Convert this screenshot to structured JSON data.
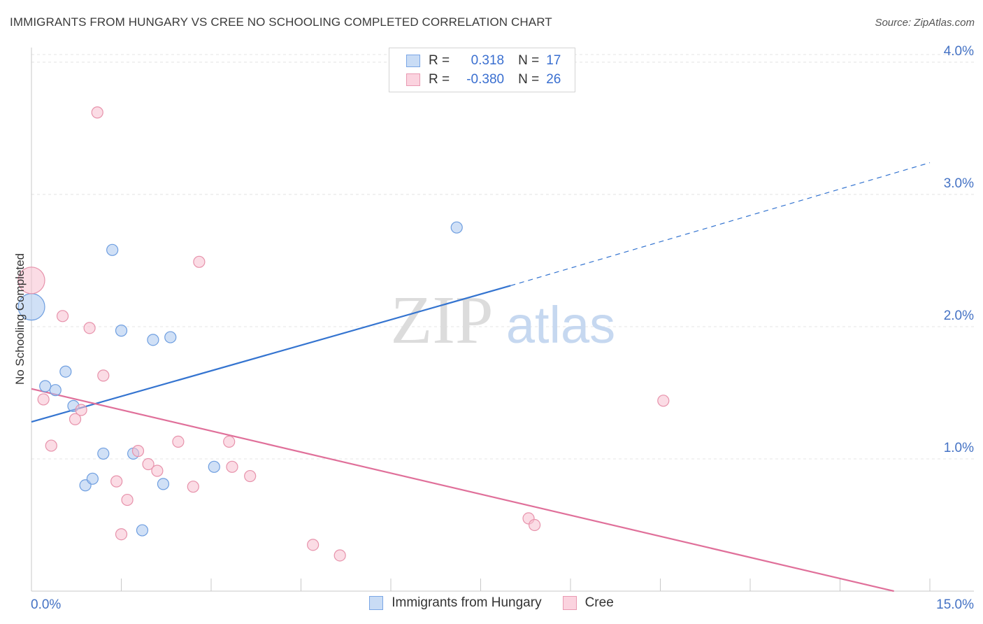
{
  "header": {
    "title": "IMMIGRANTS FROM HUNGARY VS CREE NO SCHOOLING COMPLETED CORRELATION CHART",
    "source": "Source: ZipAtlas.com"
  },
  "watermark": {
    "zip": "ZIP",
    "atlas": "atlas"
  },
  "legend": {
    "rows": [
      {
        "r_label": "R =",
        "r_value": "0.318",
        "n_label": "N =",
        "n_value": "17",
        "color": "#a8c8f0",
        "border": "#6f9fe0"
      },
      {
        "r_label": "R =",
        "r_value": "-0.380",
        "n_label": "N =",
        "n_value": "26",
        "color": "#f8bfd0",
        "border": "#e890aa"
      }
    ]
  },
  "bottom_legend": [
    {
      "label": "Immigrants from Hungary",
      "color": "#c9dcf5",
      "border": "#7aa6e6"
    },
    {
      "label": "Cree",
      "color": "#fbd3df",
      "border": "#e99ab2"
    }
  ],
  "chart_data": {
    "type": "scatter",
    "title": "IMMIGRANTS FROM HUNGARY VS CREE NO SCHOOLING COMPLETED CORRELATION CHART",
    "xlabel": "",
    "ylabel": "No Schooling Completed",
    "xlim": [
      0,
      15
    ],
    "ylim": [
      0,
      4.1
    ],
    "x_tick_labels": [
      "0.0%",
      "15.0%"
    ],
    "y_ticks": [
      1,
      2,
      3,
      4
    ],
    "y_tick_labels": [
      "1.0%",
      "2.0%",
      "3.0%",
      "4.0%"
    ],
    "grid": true,
    "series": [
      {
        "name": "Immigrants from Hungary",
        "color": "#a9c7ee",
        "stroke": "#6e9ee0",
        "points": [
          {
            "x": 0.0,
            "y": 2.15,
            "big": true
          },
          {
            "x": 0.23,
            "y": 1.55
          },
          {
            "x": 0.4,
            "y": 1.52
          },
          {
            "x": 0.57,
            "y": 1.66
          },
          {
            "x": 0.7,
            "y": 1.4
          },
          {
            "x": 0.9,
            "y": 0.8
          },
          {
            "x": 1.02,
            "y": 0.85
          },
          {
            "x": 1.2,
            "y": 1.04
          },
          {
            "x": 1.35,
            "y": 2.58
          },
          {
            "x": 1.5,
            "y": 1.97
          },
          {
            "x": 1.7,
            "y": 1.04
          },
          {
            "x": 1.85,
            "y": 0.46
          },
          {
            "x": 2.03,
            "y": 1.9
          },
          {
            "x": 2.2,
            "y": 0.81
          },
          {
            "x": 2.32,
            "y": 1.92
          },
          {
            "x": 3.05,
            "y": 0.94
          },
          {
            "x": 7.1,
            "y": 2.75
          }
        ],
        "trend": {
          "x0": 0,
          "y0": 1.28,
          "x1": 8.0,
          "y1": 2.31,
          "dash_x1": 15,
          "dash_y1": 3.24
        }
      },
      {
        "name": "Cree",
        "color": "#f8c0d0",
        "stroke": "#e792ab",
        "points": [
          {
            "x": 0.0,
            "y": 2.35,
            "big": true
          },
          {
            "x": 0.2,
            "y": 1.45
          },
          {
            "x": 0.33,
            "y": 1.1
          },
          {
            "x": 0.52,
            "y": 2.08
          },
          {
            "x": 0.73,
            "y": 1.3
          },
          {
            "x": 0.83,
            "y": 1.37
          },
          {
            "x": 0.97,
            "y": 1.99
          },
          {
            "x": 1.1,
            "y": 3.62
          },
          {
            "x": 1.2,
            "y": 1.63
          },
          {
            "x": 1.42,
            "y": 0.83
          },
          {
            "x": 1.5,
            "y": 0.43
          },
          {
            "x": 1.6,
            "y": 0.69
          },
          {
            "x": 1.78,
            "y": 1.06
          },
          {
            "x": 1.95,
            "y": 0.96
          },
          {
            "x": 2.1,
            "y": 0.91
          },
          {
            "x": 2.45,
            "y": 1.13
          },
          {
            "x": 2.7,
            "y": 0.79
          },
          {
            "x": 2.8,
            "y": 2.49
          },
          {
            "x": 3.3,
            "y": 1.13
          },
          {
            "x": 3.35,
            "y": 0.94
          },
          {
            "x": 3.65,
            "y": 0.87
          },
          {
            "x": 4.7,
            "y": 0.35
          },
          {
            "x": 5.15,
            "y": 0.27
          },
          {
            "x": 8.3,
            "y": 0.55
          },
          {
            "x": 8.4,
            "y": 0.5
          },
          {
            "x": 10.55,
            "y": 1.44
          }
        ],
        "trend": {
          "x0": 0,
          "y0": 1.53,
          "x1": 14.4,
          "y1": 0.0
        }
      }
    ]
  }
}
